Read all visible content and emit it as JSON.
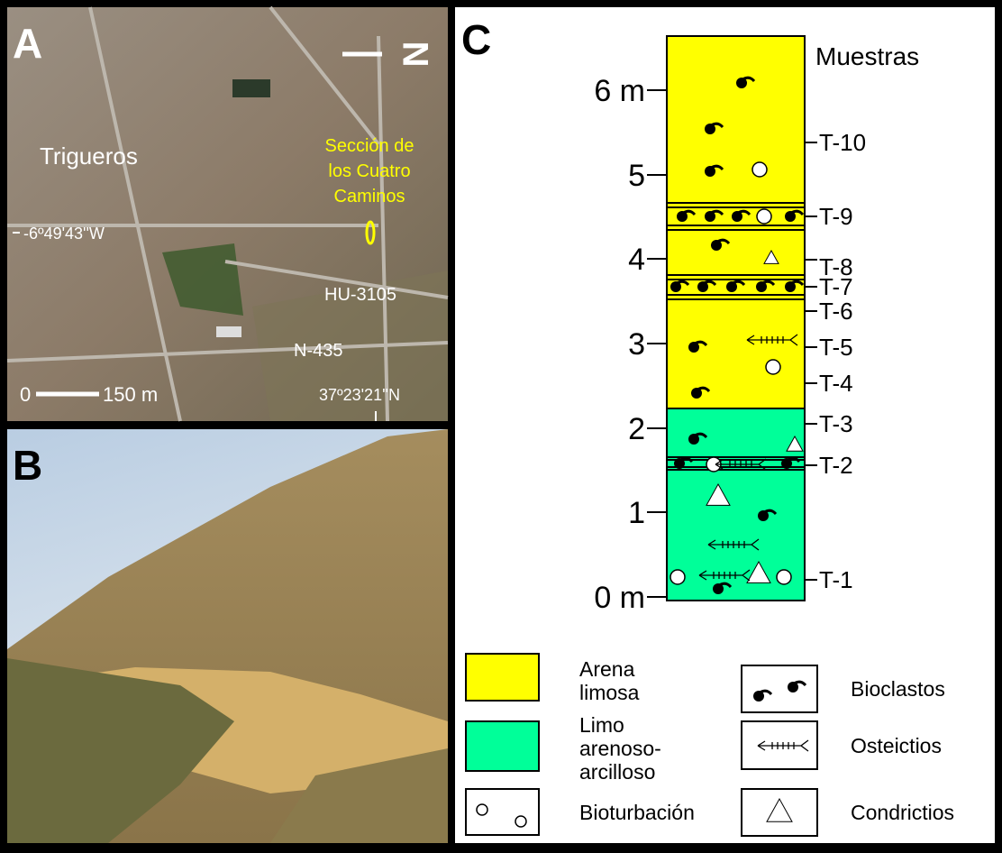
{
  "panels": {
    "a": {
      "label": "A",
      "town": "Trigueros",
      "section": [
        "Sección de",
        "los Cuatro",
        "Caminos"
      ],
      "longitude": "-6º49'43''W",
      "latitude": "37º23'21''N",
      "road_1": "HU-3105",
      "road_2": "N-435",
      "scale": [
        "0",
        "150 m"
      ],
      "north": "N"
    },
    "b": {
      "label": "B"
    },
    "c": {
      "label": "C",
      "depth_labels": [
        "0 m",
        "1",
        "2",
        "3",
        "4",
        "5",
        "6 m"
      ],
      "samples_header": "Muestras",
      "samples": [
        "T-1",
        "T-2",
        "T-3",
        "T-4",
        "T-5",
        "T-6",
        "T-7",
        "T-8",
        "T-9",
        "T-10"
      ],
      "legend": {
        "sand": [
          "Arena",
          "limosa"
        ],
        "silt": [
          "Limo",
          "arenoso-",
          "arcilloso"
        ],
        "bioturbation": "Bioturbación",
        "bioclasts": "Bioclastos",
        "osteichthyes": "Osteictios",
        "chondrichthyes": "Condrictios"
      }
    }
  }
}
